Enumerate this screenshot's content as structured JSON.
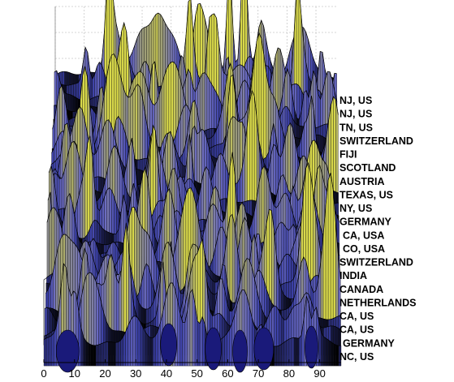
{
  "chart_data": {
    "type": "surface",
    "title": "",
    "xlabel": "",
    "ylabel": "",
    "zlabel": "",
    "x_ticks": [
      "0",
      "10",
      "20",
      "30",
      "40",
      "50",
      "60",
      "70",
      "80",
      "90"
    ],
    "xlim": [
      0,
      97
    ],
    "grid": true,
    "colormap": [
      "#000000",
      "#3a3fa6",
      "#6c6cc0",
      "#9a9a7a",
      "#d8d84a"
    ],
    "rows": [
      "NJ, US",
      "NJ, US",
      "TN, US",
      "SWITZERLAND",
      "FIJI",
      "SCOTLAND",
      "AUSTRIA",
      "TEXAS, US",
      "NY, US",
      "GERMANY",
      "CA, USA",
      "CO, USA",
      "SWITZERLAND",
      "INDIA",
      "CANADA",
      "NETHERLANDS",
      "CA, US",
      "CA, US",
      "GERMANY",
      "NC, US"
    ]
  }
}
